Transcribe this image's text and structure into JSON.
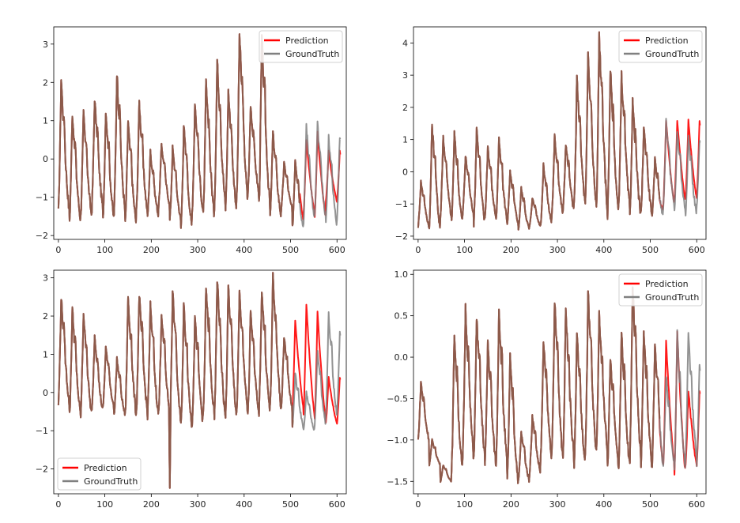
{
  "chart_data": [
    {
      "type": "line",
      "title": "",
      "xlabel": "",
      "ylabel": "",
      "xlim": [
        -10,
        620
      ],
      "ylim": [
        -2.1,
        3.45
      ],
      "xticks": [
        0,
        100,
        200,
        300,
        400,
        500,
        600
      ],
      "yticks": [
        -2,
        -1,
        0,
        1,
        2,
        3
      ],
      "legend_loc": "top-right",
      "series": [
        {
          "name": "Prediction",
          "color": "#ff0000"
        },
        {
          "name": "GroundTruth",
          "color": "#808080"
        }
      ],
      "period": 24,
      "split": 520,
      "ground_truth_peaks": [
        2.1,
        1.2,
        1.2,
        1.6,
        1.3,
        2.3,
        1.0,
        1.5,
        0.2,
        0.4,
        0.3,
        0.9,
        1.5,
        2.0,
        2.6,
        1.8,
        3.3,
        1.4,
        3.2,
        0.7,
        -0.1,
        0.0,
        0.9,
        0.9,
        0.6,
        0.6,
        0.4,
        0.5,
        0.6,
        0.3,
        0.7,
        0.4,
        0.9,
        1.1,
        0.5,
        0.8,
        1.0,
        0.3,
        1.1,
        0.6,
        0.9
      ],
      "ground_truth_troughs": [
        -1.4,
        -1.6,
        -1.5,
        -1.3,
        -1.6,
        -1.4,
        -1.7,
        -1.4,
        -1.5,
        -1.2,
        -1.6,
        -1.8,
        -1.4,
        -1.5,
        -1.2,
        -1.3,
        -1.1,
        -0.9,
        -1.2,
        -1.5,
        -1.3,
        -1.8,
        -1.6,
        -1.5,
        -1.7,
        -1.5,
        -1.3,
        -1.7,
        -1.3,
        -1.2,
        -1.7,
        -1.6,
        -1.7,
        -1.3,
        -1.6,
        -1.5,
        -1.6,
        -1.3,
        -1.4,
        -1.5,
        -1.2
      ],
      "prediction_peaks_forecast": [
        0.4,
        0.5,
        0.7,
        0.2
      ],
      "prediction_troughs_forecast": [
        -1.6,
        -1.4,
        -1.5,
        -1.1
      ]
    },
    {
      "type": "line",
      "title": "",
      "xlabel": "",
      "ylabel": "",
      "xlim": [
        -10,
        620
      ],
      "ylim": [
        -2.1,
        4.5
      ],
      "xticks": [
        0,
        100,
        200,
        300,
        400,
        500,
        600
      ],
      "yticks": [
        -2,
        -1,
        0,
        1,
        2,
        3,
        4
      ],
      "legend_loc": "top-right",
      "series": [
        {
          "name": "Prediction",
          "color": "#ff0000"
        },
        {
          "name": "GroundTruth",
          "color": "#808080"
        }
      ],
      "period": 24,
      "split": 520,
      "ground_truth_peaks": [
        -0.3,
        1.5,
        1.1,
        1.2,
        0.5,
        1.4,
        0.8,
        1.0,
        0.0,
        -0.5,
        -0.8,
        0.2,
        1.1,
        0.9,
        2.9,
        3.7,
        4.3,
        3.2,
        3.0,
        2.2,
        1.4,
        0.4,
        1.6,
        1.3,
        1.1,
        1.0,
        1.0,
        0.6,
        1.5,
        0.9,
        1.3,
        1.1,
        1.0,
        1.0,
        1.0,
        1.0,
        0.6,
        0.8,
        1.0,
        0.6,
        1.0
      ],
      "ground_truth_troughs": [
        -1.7,
        -1.8,
        -1.4,
        -1.6,
        -1.3,
        -1.6,
        -1.4,
        -1.5,
        -1.6,
        -1.8,
        -1.7,
        -1.6,
        -1.3,
        -1.2,
        -1.0,
        -1.1,
        -1.2,
        -1.3,
        -1.1,
        -1.4,
        -1.3,
        -1.4,
        -1.1,
        -1.2,
        -1.3,
        -1.1,
        -1.0,
        -0.9,
        -1.0,
        -0.8,
        -1.0,
        -1.0,
        -1.0,
        -1.1,
        -1.2,
        -1.1,
        -1.0,
        -0.9,
        -1.0,
        -1.0,
        -1.0
      ],
      "prediction_peaks_forecast": [
        -0.3,
        1.6,
        1.6,
        1.6
      ],
      "prediction_troughs_forecast": [
        -1.2,
        -1.0,
        -0.9,
        -0.8
      ]
    },
    {
      "type": "line",
      "title": "",
      "xlabel": "",
      "ylabel": "",
      "xlim": [
        -10,
        620
      ],
      "ylim": [
        -2.65,
        3.2
      ],
      "xticks": [
        0,
        100,
        200,
        300,
        400,
        500,
        600
      ],
      "yticks": [
        -2,
        -1,
        0,
        1,
        2,
        3
      ],
      "legend_loc": "bottom-left",
      "series": [
        {
          "name": "Prediction",
          "color": "#ff0000"
        },
        {
          "name": "GroundTruth",
          "color": "#808080"
        }
      ],
      "period": 24,
      "split": 505,
      "ground_truth_peaks": [
        2.5,
        2.2,
        2.1,
        1.5,
        1.2,
        0.9,
        2.5,
        2.6,
        2.3,
        2.1,
        2.7,
        2.3,
        2.0,
        2.8,
        3.0,
        2.8,
        2.6,
        2.2,
        2.7,
        3.0,
        1.5,
        0.5,
        0.0,
        1.1,
        2.1,
        1.6,
        2.2,
        0.9,
        2.3,
        2.9,
        1.1,
        0.9
      ],
      "ground_truth_troughs": [
        -0.3,
        -0.6,
        -0.6,
        -0.5,
        -0.4,
        -0.6,
        -0.6,
        -0.5,
        -0.6,
        -0.5,
        -0.8,
        -0.9,
        -0.8,
        -0.6,
        -0.7,
        -0.6,
        -0.5,
        -0.6,
        -0.5,
        -0.4,
        -0.4,
        -0.9,
        -1.0,
        -0.8,
        -0.6,
        -0.6,
        -0.7,
        -0.7,
        -0.8,
        -0.8,
        -0.8,
        -1.0
      ],
      "spike": {
        "x": 240,
        "y": -2.5
      },
      "prediction_peaks_forecast": [
        1.9,
        2.3,
        2.1,
        0.4
      ],
      "prediction_troughs_forecast": [
        -0.4,
        -0.6,
        -0.7,
        -0.8
      ]
    },
    {
      "type": "line",
      "title": "",
      "xlabel": "",
      "ylabel": "",
      "xlim": [
        -10,
        620
      ],
      "ylim": [
        -1.65,
        1.05
      ],
      "xticks": [
        0,
        100,
        200,
        300,
        400,
        500,
        600
      ],
      "yticks": [
        -1.5,
        -1.0,
        -0.5,
        0.0,
        0.5,
        1.0
      ],
      "legend_loc": "top-right",
      "series": [
        {
          "name": "Prediction",
          "color": "#ff0000"
        },
        {
          "name": "GroundTruth",
          "color": "#808080"
        }
      ],
      "period": 24,
      "split": 520,
      "ground_truth_peaks": [
        -0.3,
        -1.0,
        -1.3,
        0.3,
        0.6,
        0.5,
        0.2,
        0.6,
        0.0,
        -0.9,
        -0.7,
        0.2,
        0.7,
        0.6,
        0.3,
        0.8,
        0.5,
        0.0,
        0.3,
        0.9,
        0.3,
        0.2,
        -0.2,
        0.3,
        0.3,
        -0.1,
        -0.2,
        -0.3,
        0.4,
        0.5,
        0.2,
        0.3,
        0.5,
        0.5,
        0.2,
        0.0
      ],
      "ground_truth_troughs": [
        -1.0,
        -1.3,
        -1.5,
        -1.4,
        -1.2,
        -1.2,
        -1.3,
        -1.3,
        -1.5,
        -1.5,
        -1.4,
        -1.2,
        -1.2,
        -1.2,
        -1.3,
        -1.2,
        -1.1,
        -1.3,
        -1.3,
        -1.2,
        -1.3,
        -1.3,
        -1.3,
        -1.4,
        -1.2,
        -1.3,
        -1.3,
        -1.3,
        -1.3,
        -1.4,
        -1.4,
        -1.4,
        -1.4,
        -1.5,
        -1.3,
        -1.1
      ],
      "prediction_peaks_forecast": [
        0.0,
        0.2,
        0.3,
        -0.4
      ],
      "prediction_troughs_forecast": [
        -1.3,
        -1.3,
        -1.4,
        -1.3
      ]
    }
  ]
}
